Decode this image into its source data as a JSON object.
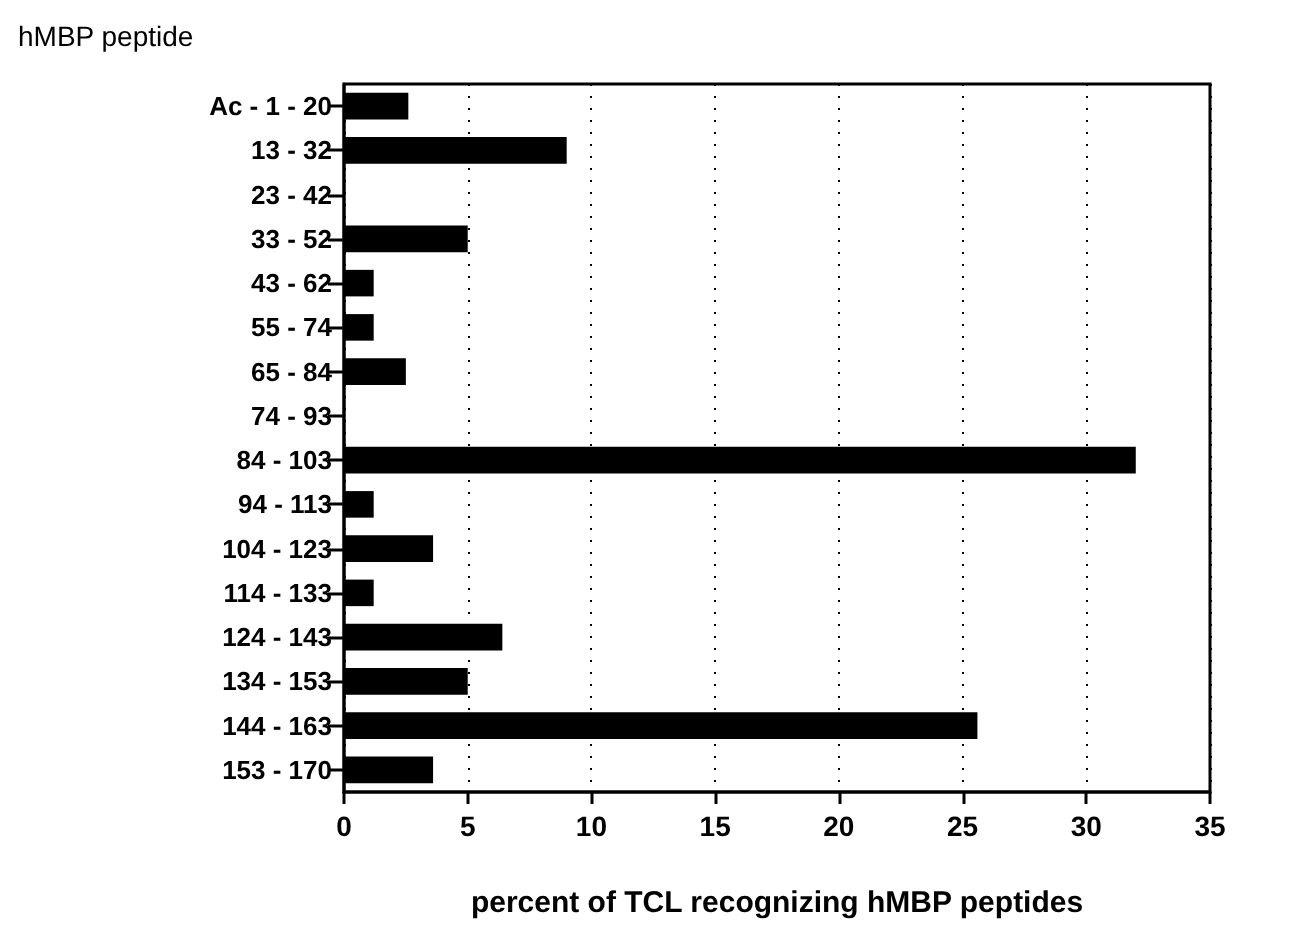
{
  "chart_data": {
    "type": "bar",
    "orientation": "horizontal",
    "ylabel": "hMBP peptide",
    "xlabel": "percent of TCL recognizing hMBP peptides",
    "categories": [
      "Ac - 1 - 20",
      "13 - 32",
      "23 - 42",
      "33 - 52",
      "43 - 62",
      "55 - 74",
      "65 - 84",
      "74 - 93",
      "84 - 103",
      "94 - 113",
      "104 - 123",
      "114 - 133",
      "124 - 143",
      "134 - 153",
      "144 - 163",
      "153 - 170"
    ],
    "values": [
      2.6,
      9.0,
      0,
      5.0,
      1.2,
      1.2,
      2.5,
      0,
      32.0,
      1.2,
      3.6,
      1.2,
      6.4,
      5.0,
      25.6,
      3.6
    ],
    "color": "#000000",
    "xlim": [
      0,
      35
    ],
    "xticks": [
      0,
      5,
      10,
      15,
      20,
      25,
      30,
      35
    ],
    "grid": "x"
  }
}
